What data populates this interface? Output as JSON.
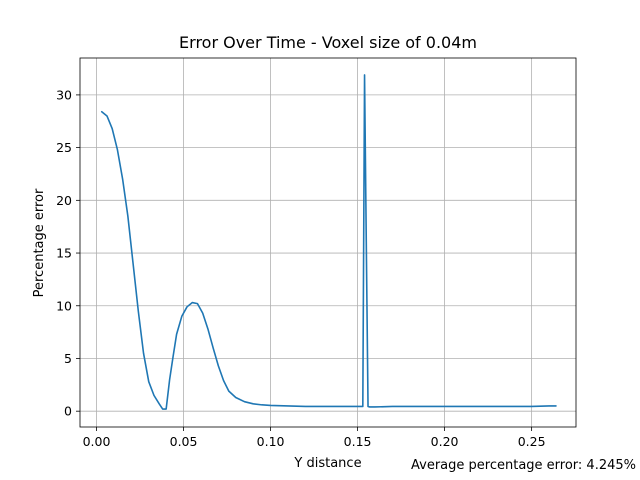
{
  "chart_data": {
    "type": "line",
    "title": "Error Over Time - Voxel size of 0.04m",
    "xlabel": "Y distance",
    "ylabel": "Percentage error",
    "annotation": "Average percentage error: 4.245%",
    "xlim": [
      -0.0095,
      0.2755
    ],
    "ylim": [
      -1.5,
      33.5
    ],
    "xticks": [
      0.0,
      0.05,
      0.1,
      0.15,
      0.2,
      0.25
    ],
    "xtick_labels": [
      "0.00",
      "0.05",
      "0.10",
      "0.15",
      "0.20",
      "0.25"
    ],
    "yticks": [
      0,
      5,
      10,
      15,
      20,
      25,
      30
    ],
    "ytick_labels": [
      "0",
      "5",
      "10",
      "15",
      "20",
      "25",
      "30"
    ],
    "grid": true,
    "series": [
      {
        "color": "#1f77b4",
        "x": [
          0.003,
          0.006,
          0.009,
          0.012,
          0.015,
          0.018,
          0.021,
          0.024,
          0.027,
          0.03,
          0.033,
          0.036,
          0.038,
          0.04,
          0.042,
          0.044,
          0.046,
          0.049,
          0.052,
          0.055,
          0.058,
          0.061,
          0.064,
          0.067,
          0.07,
          0.073,
          0.076,
          0.08,
          0.085,
          0.09,
          0.095,
          0.1,
          0.11,
          0.12,
          0.13,
          0.14,
          0.15,
          0.153,
          0.154,
          0.155,
          0.156,
          0.157,
          0.158,
          0.16,
          0.17,
          0.18,
          0.19,
          0.2,
          0.21,
          0.22,
          0.23,
          0.24,
          0.25,
          0.26,
          0.264
        ],
        "y": [
          28.4,
          28.0,
          26.8,
          24.8,
          22.0,
          18.5,
          14.0,
          9.5,
          5.5,
          2.8,
          1.5,
          0.7,
          0.2,
          0.2,
          3.0,
          5.2,
          7.3,
          9.0,
          9.9,
          10.3,
          10.2,
          9.3,
          7.8,
          6.0,
          4.3,
          2.9,
          1.9,
          1.3,
          0.9,
          0.7,
          0.6,
          0.55,
          0.5,
          0.45,
          0.45,
          0.45,
          0.45,
          0.45,
          31.9,
          16.0,
          0.45,
          0.4,
          0.4,
          0.4,
          0.45,
          0.45,
          0.45,
          0.45,
          0.45,
          0.45,
          0.45,
          0.45,
          0.45,
          0.5,
          0.5
        ]
      }
    ]
  }
}
